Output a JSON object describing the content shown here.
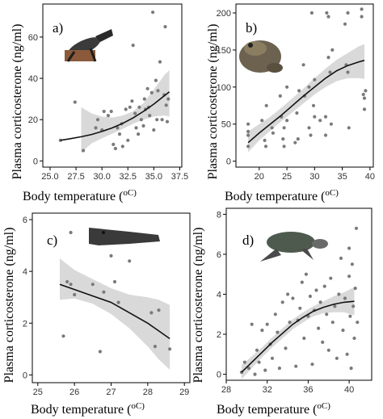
{
  "figure": {
    "x_title_main": "Body temperature (",
    "x_title_unit": "oC)",
    "y_title": "Plasma corticosterone (ng/ml)",
    "point_color": "#7a7a7a",
    "curve_color": "#111111",
    "band_color": "#d9d9d9"
  },
  "chart_data": [
    {
      "id": "a",
      "panel_label": "a)",
      "animal_icon": "lizard-icon",
      "type": "scatter",
      "xlabel": "Body temperature (oC)",
      "ylabel": "Plasma corticosterone (ng/ml)",
      "xlim": [
        24.3,
        37.7
      ],
      "ylim": [
        -3,
        76
      ],
      "xticks": [
        25.0,
        27.5,
        30.0,
        32.5,
        35.0,
        37.5
      ],
      "xtick_labels": [
        "25.0",
        "27.5",
        "30.0",
        "32.5",
        "35.0",
        "37.5"
      ],
      "yticks": [
        0,
        20,
        40,
        60
      ],
      "ytick_labels": [
        "0",
        "20",
        "40",
        "60"
      ],
      "points": [
        [
          26.0,
          10
        ],
        [
          27.4,
          28.5
        ],
        [
          28.2,
          5
        ],
        [
          29.4,
          16
        ],
        [
          29.6,
          20
        ],
        [
          30.0,
          15
        ],
        [
          30.2,
          24
        ],
        [
          30.6,
          22
        ],
        [
          30.9,
          24
        ],
        [
          31.1,
          8
        ],
        [
          31.3,
          6
        ],
        [
          31.5,
          16
        ],
        [
          31.7,
          13
        ],
        [
          31.9,
          18
        ],
        [
          32.0,
          7
        ],
        [
          32.3,
          25
        ],
        [
          32.5,
          10
        ],
        [
          32.7,
          26
        ],
        [
          32.9,
          29
        ],
        [
          33.0,
          56
        ],
        [
          33.2,
          23
        ],
        [
          33.3,
          16
        ],
        [
          33.5,
          13
        ],
        [
          33.6,
          26
        ],
        [
          33.8,
          20
        ],
        [
          34.0,
          17
        ],
        [
          34.1,
          30
        ],
        [
          34.2,
          25
        ],
        [
          34.4,
          35
        ],
        [
          34.5,
          26
        ],
        [
          34.6,
          22
        ],
        [
          34.8,
          33
        ],
        [
          34.9,
          72
        ],
        [
          35.0,
          15
        ],
        [
          35.2,
          39
        ],
        [
          35.3,
          20
        ],
        [
          35.4,
          34
        ],
        [
          35.6,
          48
        ],
        [
          35.8,
          20
        ],
        [
          36.0,
          32
        ],
        [
          36.1,
          65
        ],
        [
          36.2,
          27
        ],
        [
          36.3,
          19
        ],
        [
          36.4,
          30
        ]
      ],
      "fit": {
        "x": [
          26.0,
          27.0,
          28.0,
          29.0,
          30.0,
          31.0,
          32.0,
          33.0,
          34.0,
          35.0,
          36.0,
          36.5
        ],
        "y": [
          10.0,
          10.8,
          11.7,
          12.8,
          14.3,
          16.0,
          18.2,
          20.8,
          24.0,
          27.5,
          31.5,
          33.5
        ]
      },
      "band": {
        "x": [
          28.0,
          29.0,
          30.0,
          31.0,
          32.0,
          33.0,
          34.0,
          35.0,
          36.0,
          36.5
        ],
        "lower": [
          4.0,
          8.5,
          11.0,
          13.2,
          15.5,
          18.0,
          20.0,
          21.5,
          22.0,
          21.5
        ],
        "upper": [
          26.0,
          23.0,
          21.5,
          21.0,
          22.0,
          24.0,
          28.0,
          34.5,
          41.5,
          44.0
        ]
      }
    },
    {
      "id": "b",
      "panel_label": "b)",
      "animal_icon": "toad-icon",
      "type": "scatter",
      "xlabel": "Body temperature (oC)",
      "ylabel": "Plasma corticosterone (ng/ml)",
      "xlim": [
        15.8,
        40.6
      ],
      "ylim": [
        -8,
        212
      ],
      "xticks": [
        20,
        25,
        30,
        35,
        40
      ],
      "xtick_labels": [
        "20",
        "25",
        "30",
        "35",
        "40"
      ],
      "yticks": [
        0,
        50,
        100,
        150,
        200
      ],
      "ytick_labels": [
        "0",
        "50",
        "100",
        "150",
        "200"
      ],
      "points": [
        [
          18.0,
          20
        ],
        [
          18.0,
          35
        ],
        [
          18.0,
          40
        ],
        [
          18.0,
          50
        ],
        [
          20.5,
          55
        ],
        [
          21.0,
          28
        ],
        [
          21.2,
          20
        ],
        [
          21.3,
          75
        ],
        [
          22.3,
          45
        ],
        [
          22.5,
          38
        ],
        [
          23.8,
          88
        ],
        [
          24.0,
          60
        ],
        [
          24.3,
          30
        ],
        [
          24.5,
          45
        ],
        [
          24.5,
          20
        ],
        [
          25.0,
          100
        ],
        [
          25.0,
          55
        ],
        [
          26.5,
          25
        ],
        [
          26.8,
          65
        ],
        [
          27.0,
          30
        ],
        [
          27.2,
          95
        ],
        [
          28.0,
          130
        ],
        [
          28.2,
          88
        ],
        [
          29.0,
          100
        ],
        [
          29.0,
          45
        ],
        [
          29.3,
          35
        ],
        [
          29.5,
          200
        ],
        [
          29.8,
          75
        ],
        [
          30.0,
          110
        ],
        [
          30.0,
          60
        ],
        [
          31.0,
          55
        ],
        [
          32.0,
          60
        ],
        [
          32.0,
          35
        ],
        [
          32.2,
          200
        ],
        [
          32.5,
          195
        ],
        [
          32.5,
          140
        ],
        [
          32.8,
          120
        ],
        [
          33.0,
          50
        ],
        [
          33.2,
          150
        ],
        [
          35.5,
          185
        ],
        [
          35.7,
          130
        ],
        [
          36.0,
          200
        ],
        [
          36.0,
          120
        ],
        [
          36.2,
          45
        ],
        [
          38.5,
          205
        ],
        [
          38.5,
          195
        ],
        [
          38.8,
          90
        ],
        [
          39.0,
          85
        ],
        [
          39.0,
          70
        ],
        [
          39.2,
          95
        ]
      ],
      "fit": {
        "x": [
          18,
          20,
          22,
          24,
          26,
          28,
          30,
          32,
          34,
          36,
          38,
          39
        ],
        "y": [
          25,
          38,
          50,
          62,
          75,
          88,
          100,
          112,
          122,
          129,
          134,
          136
        ]
      },
      "band": {
        "x": [
          18,
          20,
          22,
          24,
          26,
          28,
          30,
          32,
          34,
          36,
          38,
          39
        ],
        "lower": [
          12,
          28,
          41,
          54,
          66,
          78,
          90,
          100,
          108,
          112,
          112,
          111
        ],
        "upper": [
          40,
          50,
          60,
          72,
          85,
          98,
          112,
          125,
          137,
          146,
          155,
          158
        ]
      }
    },
    {
      "id": "c",
      "panel_label": "c)",
      "animal_icon": "crocodile-icon",
      "type": "scatter",
      "xlabel": "Body temperature (oC)",
      "ylabel": "Plasma corticosterone (ng/ml)",
      "xlim": [
        24.85,
        29.15
      ],
      "ylim": [
        -0.3,
        6.25
      ],
      "xticks": [
        25,
        26,
        27,
        28,
        29
      ],
      "xtick_labels": [
        "25",
        "26",
        "27",
        "28",
        "29"
      ],
      "yticks": [
        0,
        2,
        4,
        6
      ],
      "ytick_labels": [
        "0",
        "2",
        "4",
        "6"
      ],
      "points": [
        [
          25.7,
          1.5
        ],
        [
          25.8,
          3.6
        ],
        [
          25.9,
          5.5
        ],
        [
          25.9,
          3.5
        ],
        [
          26.0,
          3.1
        ],
        [
          26.5,
          3.5
        ],
        [
          26.7,
          0.9
        ],
        [
          26.8,
          3.2
        ],
        [
          27.0,
          4.6
        ],
        [
          27.1,
          3.6
        ],
        [
          27.2,
          2.8
        ],
        [
          27.5,
          4.4
        ],
        [
          28.1,
          2.4
        ],
        [
          28.2,
          1.1
        ],
        [
          28.3,
          2.5
        ],
        [
          28.6,
          1.0
        ]
      ],
      "fit": {
        "x": [
          25.6,
          26.0,
          26.5,
          27.0,
          27.5,
          28.0,
          28.3,
          28.6
        ],
        "y": [
          3.5,
          3.3,
          3.05,
          2.8,
          2.4,
          2.0,
          1.7,
          1.4
        ]
      },
      "band": {
        "x": [
          25.6,
          26.0,
          26.5,
          27.0,
          27.5,
          28.0,
          28.3,
          28.6
        ],
        "lower": [
          2.9,
          2.95,
          2.75,
          2.35,
          1.8,
          1.1,
          0.6,
          0.2
        ],
        "upper": [
          4.5,
          4.05,
          3.7,
          3.35,
          3.1,
          3.0,
          2.9,
          2.7
        ]
      }
    },
    {
      "id": "d",
      "panel_label": "d)",
      "animal_icon": "sea-turtle-icon",
      "type": "scatter",
      "xlabel": "Body temperature (oC)",
      "ylabel": "Plasma corticosterone (ng/ml)",
      "xlim": [
        28.0,
        42.2
      ],
      "ylim": [
        -0.3,
        8.3
      ],
      "xticks": [
        28,
        32,
        36,
        40
      ],
      "xtick_labels": [
        "28",
        "32",
        "36",
        "40"
      ],
      "yticks": [
        0,
        2,
        4,
        6,
        8
      ],
      "ytick_labels": [
        "0",
        "2",
        "4",
        "6",
        "8"
      ],
      "points": [
        [
          29.5,
          0.1
        ],
        [
          29.8,
          0.6
        ],
        [
          30.2,
          0.3
        ],
        [
          30.5,
          2.5
        ],
        [
          30.8,
          0.0
        ],
        [
          31.0,
          1.2
        ],
        [
          31.2,
          0.6
        ],
        [
          31.5,
          2.2
        ],
        [
          31.8,
          0.2
        ],
        [
          32.0,
          2.5
        ],
        [
          32.3,
          1.5
        ],
        [
          32.5,
          0.8
        ],
        [
          32.8,
          3.0
        ],
        [
          33.0,
          2.1
        ],
        [
          33.2,
          0.3
        ],
        [
          33.5,
          3.6
        ],
        [
          33.8,
          1.3
        ],
        [
          34.0,
          4.0
        ],
        [
          34.2,
          2.6
        ],
        [
          34.5,
          3.8
        ],
        [
          34.8,
          0.4
        ],
        [
          35.0,
          2.7
        ],
        [
          35.2,
          3.3
        ],
        [
          35.4,
          4.6
        ],
        [
          35.6,
          1.8
        ],
        [
          35.8,
          5.0
        ],
        [
          36.0,
          2.9
        ],
        [
          36.2,
          3.9
        ],
        [
          36.4,
          0.5
        ],
        [
          36.6,
          3.2
        ],
        [
          36.8,
          4.2
        ],
        [
          37.0,
          2.3
        ],
        [
          37.2,
          3.6
        ],
        [
          37.4,
          1.6
        ],
        [
          37.6,
          4.4
        ],
        [
          37.8,
          3.0
        ],
        [
          38.0,
          1.2
        ],
        [
          38.2,
          4.8
        ],
        [
          38.4,
          2.6
        ],
        [
          38.6,
          3.4
        ],
        [
          38.8,
          0.8
        ],
        [
          39.0,
          4.0
        ],
        [
          39.2,
          5.8
        ],
        [
          39.4,
          2.2
        ],
        [
          39.6,
          3.8
        ],
        [
          39.8,
          1.0
        ],
        [
          40.0,
          6.3
        ],
        [
          40.0,
          4.9
        ],
        [
          40.1,
          2.9
        ],
        [
          40.2,
          0.3
        ],
        [
          40.3,
          5.5
        ],
        [
          40.4,
          3.4
        ],
        [
          40.5,
          1.8
        ],
        [
          40.6,
          4.3
        ],
        [
          40.7,
          7.3
        ],
        [
          40.8,
          2.6
        ]
      ],
      "fit": {
        "x": [
          29.5,
          30.5,
          31.5,
          32.5,
          33.5,
          34.5,
          35.5,
          36.5,
          37.5,
          38.5,
          39.5,
          40.5
        ],
        "y": [
          0.1,
          0.6,
          1.1,
          1.6,
          2.05,
          2.5,
          2.85,
          3.15,
          3.35,
          3.5,
          3.6,
          3.65
        ]
      },
      "band": {
        "x": [
          29.5,
          30.5,
          31.5,
          32.5,
          33.5,
          34.5,
          35.5,
          36.5,
          37.5,
          38.5,
          39.5,
          40.5
        ],
        "lower": [
          -0.25,
          0.3,
          0.85,
          1.35,
          1.8,
          2.25,
          2.6,
          2.9,
          3.05,
          3.1,
          3.1,
          2.95
        ],
        "upper": [
          0.45,
          0.9,
          1.35,
          1.85,
          2.3,
          2.75,
          3.1,
          3.4,
          3.65,
          3.9,
          4.1,
          4.35
        ]
      }
    }
  ]
}
